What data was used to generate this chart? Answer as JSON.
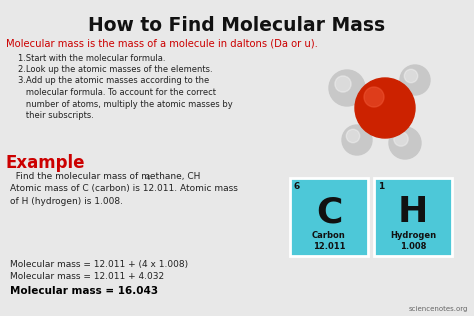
{
  "title": "How to Find Molecular Mass",
  "subtitle": "Molecular mass is the mass of a molecule in daltons (Da or u).",
  "steps": [
    "1.Start with the molecular formula.",
    "2.Look up the atomic masses of the elements.",
    "3.Add up the atomic masses according to the\n   molecular formula. To account for the correct\n   number of atoms, multiply the atomic masses by\n   their subscripts."
  ],
  "example_header": "Example",
  "example_line1a": "  Find the molecular mass of methane, CH",
  "example_line1_sub": "4",
  "example_line1b": ".",
  "example_line2": "Atomic mass of C (carbon) is 12.011. Atomic mass\nof H (hydrogen) is 1.008.",
  "calc_line1": "Molecular mass = 12.011 + (4 x 1.008)",
  "calc_line2": "Molecular mass = 12.011 + 4.032",
  "calc_line3": "Molecular mass = 16.043",
  "watermark": "sciencenotes.org",
  "bg_color": "#e8e8e8",
  "title_color": "#111111",
  "subtitle_color": "#cc0000",
  "example_color": "#cc0000",
  "body_color": "#222222",
  "bold_color": "#000000",
  "element_C_color_top": "#4dc8d8",
  "element_C_color_bot": "#2aa0b8",
  "element_H_color_top": "#4dc8d8",
  "element_H_color_bot": "#2aa0b8",
  "element_text_color": "#111111",
  "element_C_symbol": "C",
  "element_C_name": "Carbon",
  "element_C_mass": "12.011",
  "element_C_number": "6",
  "element_H_symbol": "H",
  "element_H_name": "Hydrogen",
  "element_H_mass": "1.008",
  "element_H_number": "1",
  "mol_center_color": "#cc2200",
  "mol_satellite_color": "#c8c8c8",
  "mol_highlight_color": "#ee5533"
}
